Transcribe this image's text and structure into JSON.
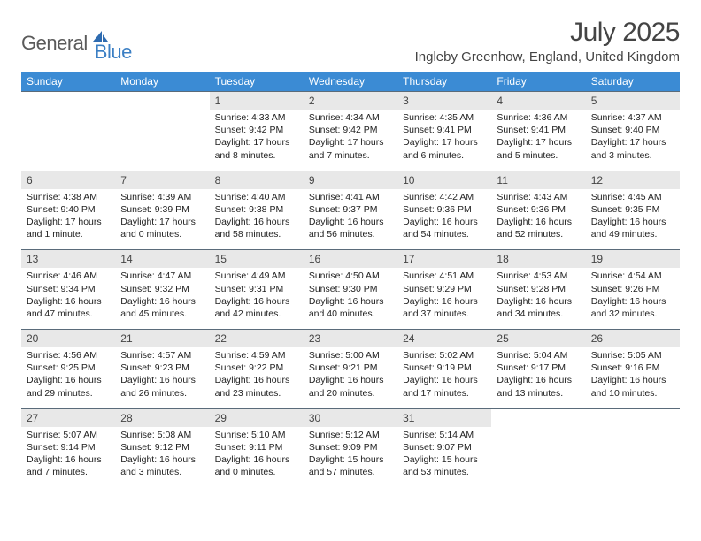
{
  "logo": {
    "general": "General",
    "blue": "Blue"
  },
  "title": "July 2025",
  "location": "Ingleby Greenhow, England, United Kingdom",
  "colors": {
    "header_bg": "#3b8bd4",
    "header_text": "#ffffff",
    "daynum_bg": "#e8e8e8",
    "border": "#5a6b7a",
    "logo_gray": "#5a5a5a",
    "logo_blue": "#3b7fc4"
  },
  "day_names": [
    "Sunday",
    "Monday",
    "Tuesday",
    "Wednesday",
    "Thursday",
    "Friday",
    "Saturday"
  ],
  "weeks": [
    {
      "nums": [
        "",
        "",
        "1",
        "2",
        "3",
        "4",
        "5"
      ],
      "cells": [
        null,
        null,
        {
          "sunrise": "Sunrise: 4:33 AM",
          "sunset": "Sunset: 9:42 PM",
          "daylight": "Daylight: 17 hours and 8 minutes."
        },
        {
          "sunrise": "Sunrise: 4:34 AM",
          "sunset": "Sunset: 9:42 PM",
          "daylight": "Daylight: 17 hours and 7 minutes."
        },
        {
          "sunrise": "Sunrise: 4:35 AM",
          "sunset": "Sunset: 9:41 PM",
          "daylight": "Daylight: 17 hours and 6 minutes."
        },
        {
          "sunrise": "Sunrise: 4:36 AM",
          "sunset": "Sunset: 9:41 PM",
          "daylight": "Daylight: 17 hours and 5 minutes."
        },
        {
          "sunrise": "Sunrise: 4:37 AM",
          "sunset": "Sunset: 9:40 PM",
          "daylight": "Daylight: 17 hours and 3 minutes."
        }
      ]
    },
    {
      "nums": [
        "6",
        "7",
        "8",
        "9",
        "10",
        "11",
        "12"
      ],
      "cells": [
        {
          "sunrise": "Sunrise: 4:38 AM",
          "sunset": "Sunset: 9:40 PM",
          "daylight": "Daylight: 17 hours and 1 minute."
        },
        {
          "sunrise": "Sunrise: 4:39 AM",
          "sunset": "Sunset: 9:39 PM",
          "daylight": "Daylight: 17 hours and 0 minutes."
        },
        {
          "sunrise": "Sunrise: 4:40 AM",
          "sunset": "Sunset: 9:38 PM",
          "daylight": "Daylight: 16 hours and 58 minutes."
        },
        {
          "sunrise": "Sunrise: 4:41 AM",
          "sunset": "Sunset: 9:37 PM",
          "daylight": "Daylight: 16 hours and 56 minutes."
        },
        {
          "sunrise": "Sunrise: 4:42 AM",
          "sunset": "Sunset: 9:36 PM",
          "daylight": "Daylight: 16 hours and 54 minutes."
        },
        {
          "sunrise": "Sunrise: 4:43 AM",
          "sunset": "Sunset: 9:36 PM",
          "daylight": "Daylight: 16 hours and 52 minutes."
        },
        {
          "sunrise": "Sunrise: 4:45 AM",
          "sunset": "Sunset: 9:35 PM",
          "daylight": "Daylight: 16 hours and 49 minutes."
        }
      ]
    },
    {
      "nums": [
        "13",
        "14",
        "15",
        "16",
        "17",
        "18",
        "19"
      ],
      "cells": [
        {
          "sunrise": "Sunrise: 4:46 AM",
          "sunset": "Sunset: 9:34 PM",
          "daylight": "Daylight: 16 hours and 47 minutes."
        },
        {
          "sunrise": "Sunrise: 4:47 AM",
          "sunset": "Sunset: 9:32 PM",
          "daylight": "Daylight: 16 hours and 45 minutes."
        },
        {
          "sunrise": "Sunrise: 4:49 AM",
          "sunset": "Sunset: 9:31 PM",
          "daylight": "Daylight: 16 hours and 42 minutes."
        },
        {
          "sunrise": "Sunrise: 4:50 AM",
          "sunset": "Sunset: 9:30 PM",
          "daylight": "Daylight: 16 hours and 40 minutes."
        },
        {
          "sunrise": "Sunrise: 4:51 AM",
          "sunset": "Sunset: 9:29 PM",
          "daylight": "Daylight: 16 hours and 37 minutes."
        },
        {
          "sunrise": "Sunrise: 4:53 AM",
          "sunset": "Sunset: 9:28 PM",
          "daylight": "Daylight: 16 hours and 34 minutes."
        },
        {
          "sunrise": "Sunrise: 4:54 AM",
          "sunset": "Sunset: 9:26 PM",
          "daylight": "Daylight: 16 hours and 32 minutes."
        }
      ]
    },
    {
      "nums": [
        "20",
        "21",
        "22",
        "23",
        "24",
        "25",
        "26"
      ],
      "cells": [
        {
          "sunrise": "Sunrise: 4:56 AM",
          "sunset": "Sunset: 9:25 PM",
          "daylight": "Daylight: 16 hours and 29 minutes."
        },
        {
          "sunrise": "Sunrise: 4:57 AM",
          "sunset": "Sunset: 9:23 PM",
          "daylight": "Daylight: 16 hours and 26 minutes."
        },
        {
          "sunrise": "Sunrise: 4:59 AM",
          "sunset": "Sunset: 9:22 PM",
          "daylight": "Daylight: 16 hours and 23 minutes."
        },
        {
          "sunrise": "Sunrise: 5:00 AM",
          "sunset": "Sunset: 9:21 PM",
          "daylight": "Daylight: 16 hours and 20 minutes."
        },
        {
          "sunrise": "Sunrise: 5:02 AM",
          "sunset": "Sunset: 9:19 PM",
          "daylight": "Daylight: 16 hours and 17 minutes."
        },
        {
          "sunrise": "Sunrise: 5:04 AM",
          "sunset": "Sunset: 9:17 PM",
          "daylight": "Daylight: 16 hours and 13 minutes."
        },
        {
          "sunrise": "Sunrise: 5:05 AM",
          "sunset": "Sunset: 9:16 PM",
          "daylight": "Daylight: 16 hours and 10 minutes."
        }
      ]
    },
    {
      "nums": [
        "27",
        "28",
        "29",
        "30",
        "31",
        "",
        ""
      ],
      "cells": [
        {
          "sunrise": "Sunrise: 5:07 AM",
          "sunset": "Sunset: 9:14 PM",
          "daylight": "Daylight: 16 hours and 7 minutes."
        },
        {
          "sunrise": "Sunrise: 5:08 AM",
          "sunset": "Sunset: 9:12 PM",
          "daylight": "Daylight: 16 hours and 3 minutes."
        },
        {
          "sunrise": "Sunrise: 5:10 AM",
          "sunset": "Sunset: 9:11 PM",
          "daylight": "Daylight: 16 hours and 0 minutes."
        },
        {
          "sunrise": "Sunrise: 5:12 AM",
          "sunset": "Sunset: 9:09 PM",
          "daylight": "Daylight: 15 hours and 57 minutes."
        },
        {
          "sunrise": "Sunrise: 5:14 AM",
          "sunset": "Sunset: 9:07 PM",
          "daylight": "Daylight: 15 hours and 53 minutes."
        },
        null,
        null
      ]
    }
  ]
}
